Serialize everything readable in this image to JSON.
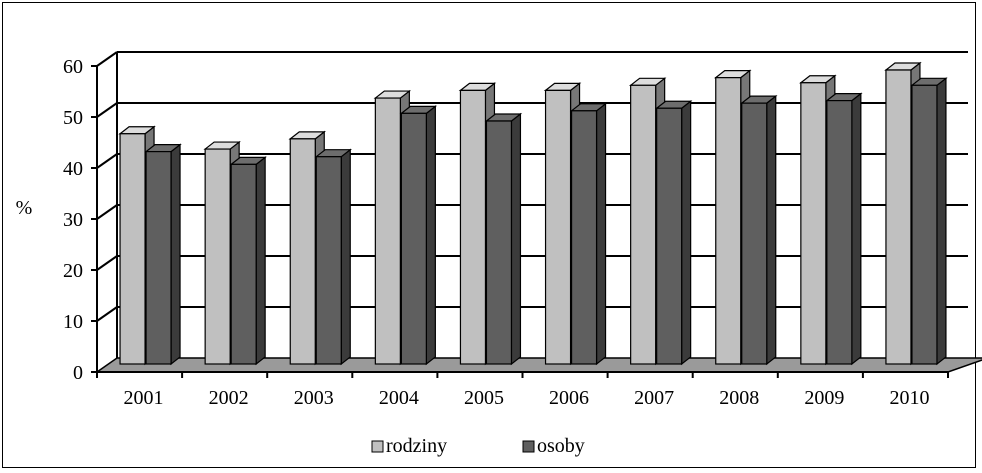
{
  "chart_data": {
    "type": "bar",
    "style": "3d-clustered-column",
    "categories": [
      "2001",
      "2002",
      "2003",
      "2004",
      "2005",
      "2006",
      "2007",
      "2008",
      "2009",
      "2010"
    ],
    "series": [
      {
        "name": "rodziny",
        "color": "#c0c0c0",
        "values": [
          47.5,
          44.5,
          46.5,
          54.5,
          56,
          56,
          57,
          58.5,
          57.5,
          60
        ]
      },
      {
        "name": "osoby",
        "color": "#5f5f5f",
        "values": [
          44,
          41.5,
          43,
          51.5,
          50,
          52,
          52.5,
          53.5,
          54,
          57
        ]
      }
    ],
    "ylabel": "%",
    "ylim": [
      0,
      60
    ],
    "yticks": [
      "0",
      "10",
      "20",
      "30",
      "40",
      "50",
      "60"
    ],
    "grid": true,
    "legend_position": "bottom"
  }
}
